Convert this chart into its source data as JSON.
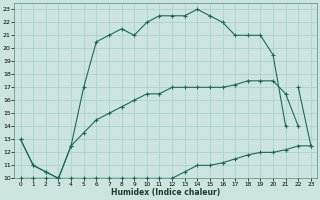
{
  "xlabel": "Humidex (Indice chaleur)",
  "bg_color": "#cce4e0",
  "grid_color": "#a8ccc8",
  "line_color": "#1a6b5a",
  "xlim": [
    -0.5,
    23.5
  ],
  "ylim": [
    10,
    23.5
  ],
  "xticks": [
    0,
    1,
    2,
    3,
    4,
    5,
    6,
    7,
    8,
    9,
    10,
    11,
    12,
    13,
    14,
    15,
    16,
    17,
    18,
    19,
    20,
    21,
    22,
    23
  ],
  "yticks": [
    10,
    11,
    12,
    13,
    14,
    15,
    16,
    17,
    18,
    19,
    20,
    21,
    22,
    23
  ],
  "lines": [
    {
      "x": [
        0,
        1,
        2,
        3,
        4,
        5,
        6,
        7,
        8,
        9,
        10,
        11,
        12,
        13,
        14,
        15,
        16,
        17,
        18,
        19,
        20,
        21,
        22,
        23
      ],
      "y": [
        10,
        10,
        10,
        10,
        10,
        10,
        10,
        10,
        10,
        10,
        10,
        10,
        10,
        10.5,
        11,
        11,
        11.2,
        11.5,
        11.8,
        12,
        12,
        12.2,
        12.5,
        12.5
      ]
    },
    {
      "x": [
        0,
        1,
        2,
        3,
        4,
        5,
        6,
        7,
        8,
        9,
        10,
        11,
        12,
        13,
        14,
        15,
        16,
        17,
        18,
        19,
        20,
        21,
        22
      ],
      "y": [
        13,
        11,
        10.5,
        10,
        12.5,
        13.5,
        14.5,
        15,
        15.5,
        16,
        16.5,
        16.5,
        17,
        17,
        17,
        17,
        17,
        17.2,
        17.5,
        17.5,
        17.5,
        16.5,
        14
      ]
    },
    {
      "x": [
        0,
        1,
        2,
        3,
        4,
        5,
        6,
        7,
        8,
        9,
        10,
        11,
        12,
        13,
        14,
        15,
        16,
        17,
        18,
        19,
        20,
        21
      ],
      "y": [
        13,
        11,
        10.5,
        10,
        12.5,
        17,
        20.5,
        21,
        21.5,
        21,
        22,
        22.5,
        22.5,
        22.5,
        23,
        22.5,
        22,
        21,
        21,
        21,
        19.5,
        14
      ]
    },
    {
      "x": [
        22,
        23
      ],
      "y": [
        17,
        12.5
      ]
    }
  ]
}
